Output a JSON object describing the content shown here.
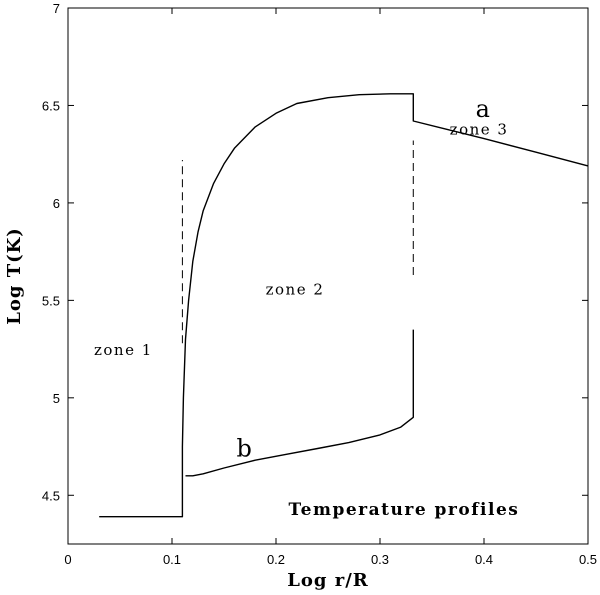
{
  "chart_data": {
    "type": "line",
    "title": "Temperature profiles",
    "xlabel": "Log r/R",
    "ylabel": "Log T(K)",
    "xlim": [
      0,
      0.5
    ],
    "ylim": [
      4.25,
      7
    ],
    "xticks": [
      0,
      0.1,
      0.2,
      0.3,
      0.4,
      0.5
    ],
    "xtick_labels": [
      "0",
      "0.1",
      "0.2",
      "0.3",
      "0.4",
      "0.5"
    ],
    "yticks": [
      4.5,
      5,
      5.5,
      6,
      6.5,
      7
    ],
    "ytick_labels": [
      "4.5",
      "5",
      "5.5",
      "6",
      "6.5",
      "7"
    ],
    "grid": false,
    "series": [
      {
        "name": "a",
        "x": [
          0.03,
          0.11,
          0.11,
          0.111,
          0.113,
          0.116,
          0.12,
          0.125,
          0.13,
          0.14,
          0.15,
          0.16,
          0.18,
          0.2,
          0.22,
          0.25,
          0.28,
          0.31,
          0.332,
          0.332,
          0.4,
          0.45,
          0.5
        ],
        "y": [
          4.39,
          4.39,
          4.75,
          5.0,
          5.3,
          5.5,
          5.7,
          5.85,
          5.96,
          6.1,
          6.2,
          6.28,
          6.39,
          6.46,
          6.51,
          6.54,
          6.555,
          6.56,
          6.56,
          6.42,
          6.33,
          6.26,
          6.19
        ]
      },
      {
        "name": "b",
        "x": [
          0.113,
          0.12,
          0.13,
          0.15,
          0.18,
          0.21,
          0.24,
          0.27,
          0.3,
          0.32,
          0.332,
          0.332
        ],
        "y": [
          4.6,
          4.6,
          4.61,
          4.64,
          4.68,
          4.71,
          4.74,
          4.77,
          4.81,
          4.85,
          4.9,
          5.35
        ]
      }
    ],
    "dashed_lines": [
      {
        "x": 0.11,
        "y": [
          5.28,
          6.22
        ]
      },
      {
        "x": 0.332,
        "y": [
          5.63,
          6.32
        ]
      }
    ],
    "annotations": [
      {
        "text": "zone 1",
        "x": 0.025,
        "y": 5.22,
        "kind": "zone"
      },
      {
        "text": "zone 2",
        "x": 0.19,
        "y": 5.53,
        "kind": "zone"
      },
      {
        "text": "zone 3",
        "x": 0.367,
        "y": 6.35,
        "kind": "zone"
      },
      {
        "text": "a",
        "x": 0.392,
        "y": 6.44,
        "kind": "curve"
      },
      {
        "text": "b",
        "x": 0.162,
        "y": 4.7,
        "kind": "curve"
      },
      {
        "text": "Temperature profiles",
        "x": 0.212,
        "y": 4.4,
        "kind": "title"
      }
    ]
  }
}
